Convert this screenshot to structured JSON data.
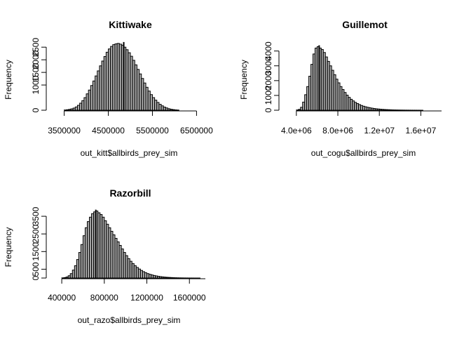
{
  "chart_data": [
    {
      "type": "bar",
      "title": "Kittiwake",
      "xlabel": "out_kitt$allbirds_prey_sim",
      "ylabel": "Frequency",
      "xlim": [
        3300000,
        6700000
      ],
      "ylim": [
        0,
        2700
      ],
      "x_ticks": [
        3500000,
        4500000,
        5500000,
        6500000
      ],
      "x_tick_labels": [
        "3500000",
        "4500000",
        "5500000",
        "6500000"
      ],
      "y_ticks": [
        0,
        1000,
        1500,
        2000,
        2500
      ],
      "y_tick_labels": [
        "0",
        "1000",
        "1500",
        "2000",
        "2500"
      ],
      "y_axis_max": 2500,
      "x_axis_range": [
        3500000,
        6500000
      ],
      "bin_start": 3500000,
      "bin_width": 50000,
      "counts": [
        10,
        20,
        35,
        55,
        85,
        130,
        195,
        280,
        380,
        500,
        650,
        800,
        980,
        1160,
        1360,
        1560,
        1760,
        1950,
        2130,
        2300,
        2430,
        2530,
        2600,
        2630,
        2650,
        2620,
        2580,
        2500,
        2400,
        2280,
        2140,
        1980,
        1800,
        1620,
        1440,
        1260,
        1080,
        910,
        760,
        620,
        500,
        400,
        310,
        235,
        175,
        125,
        90,
        60,
        40,
        25,
        15,
        8
      ],
      "mean": 4850000
    },
    {
      "type": "bar",
      "title": "Guillemot",
      "xlabel": "out_cogu$allbirds_prey_sim",
      "ylabel": "Frequency",
      "xlim": [
        3200000,
        18000000
      ],
      "ylim": [
        0,
        4600
      ],
      "x_ticks": [
        4000000,
        8000000,
        12000000,
        16000000
      ],
      "x_tick_labels": [
        "4.0e+06",
        "8.0e+06",
        "1.2e+07",
        "1.6e+07"
      ],
      "y_ticks": [
        0,
        1000,
        2000,
        3000,
        4000
      ],
      "y_tick_labels": [
        "0",
        "1000",
        "2000",
        "3000",
        "4000"
      ],
      "y_axis_max": 4000,
      "x_axis_range": [
        4000000,
        18000000
      ],
      "bin_start": 4000000,
      "bin_width": 200000,
      "counts": [
        20,
        60,
        200,
        550,
        1050,
        1600,
        2300,
        3100,
        3800,
        4200,
        4300,
        4200,
        4100,
        3900,
        3600,
        3300,
        3000,
        2700,
        2400,
        2100,
        1850,
        1600,
        1400,
        1200,
        1020,
        870,
        740,
        630,
        530,
        450,
        380,
        320,
        270,
        230,
        195,
        165,
        140,
        118,
        100,
        85,
        72,
        60,
        50,
        42,
        35,
        29,
        24,
        20,
        16,
        13,
        11,
        9,
        7,
        6,
        5,
        4,
        3,
        3,
        2,
        2,
        1
      ],
      "mean": 6200000
    },
    {
      "type": "bar",
      "title": "Razorbill",
      "xlabel": "out_razo$allbirds_prey_sim",
      "ylabel": "Frequency",
      "xlim": [
        340000,
        1750000
      ],
      "ylim": [
        0,
        3900
      ],
      "x_ticks": [
        400000,
        800000,
        1200000,
        1600000
      ],
      "x_tick_labels": [
        "400000",
        "800000",
        "1200000",
        "1600000"
      ],
      "y_ticks": [
        0,
        500,
        1500,
        2500,
        3500
      ],
      "y_tick_labels": [
        "0",
        "500",
        "1500",
        "2500",
        "3500"
      ],
      "y_axis_max": 3500,
      "x_axis_range": [
        400000,
        1750000
      ],
      "bin_start": 400000,
      "bin_width": 20000,
      "counts": [
        10,
        25,
        60,
        130,
        250,
        450,
        700,
        1050,
        1450,
        1900,
        2400,
        2850,
        3200,
        3450,
        3650,
        3750,
        3800,
        3700,
        3600,
        3450,
        3250,
        3050,
        2850,
        2650,
        2450,
        2250,
        2050,
        1850,
        1650,
        1450,
        1270,
        1100,
        950,
        820,
        700,
        600,
        510,
        430,
        360,
        300,
        250,
        210,
        175,
        145,
        120,
        98,
        80,
        65,
        52,
        42,
        34,
        27,
        21,
        16,
        12,
        9,
        7,
        5,
        4,
        3,
        2,
        2,
        1,
        1,
        1
      ],
      "mean": 720000
    }
  ]
}
